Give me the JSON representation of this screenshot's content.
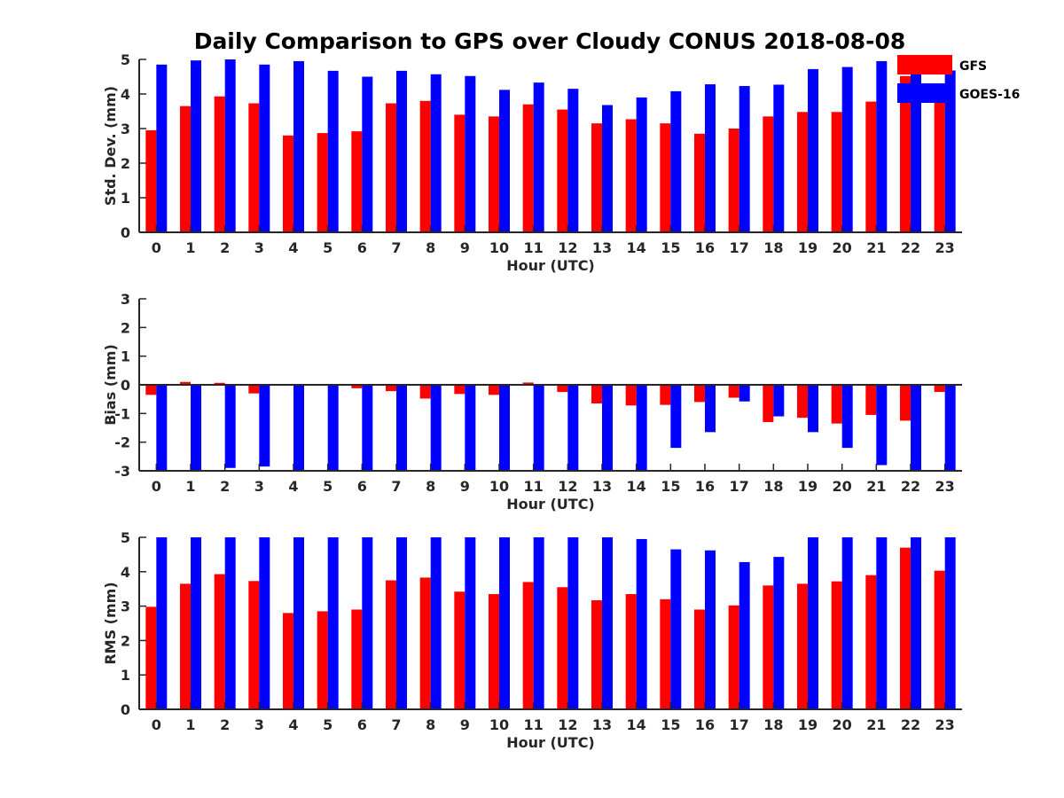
{
  "chart_data": {
    "type": "bar",
    "title": "Daily Comparison to GPS over Cloudy CONUS 2018-08-08",
    "legend": {
      "placement": "top-right",
      "entries": [
        {
          "name": "GFS",
          "color": "#ff0000"
        },
        {
          "name": "GOES-16",
          "color": "#0000ff"
        }
      ]
    },
    "colors": {
      "GFS": "#ff0000",
      "GOES-16": "#0000ff",
      "axis": "#262626"
    },
    "grid": false,
    "panels": [
      {
        "id": "stddev",
        "ylabel": "Std. Dev. (mm)",
        "xlabel": "Hour (UTC)",
        "ylim": [
          0,
          5
        ],
        "yticks": [
          0,
          1,
          2,
          3,
          4,
          5
        ],
        "zero_line": false,
        "categories": [
          "0",
          "1",
          "2",
          "3",
          "4",
          "5",
          "6",
          "7",
          "8",
          "9",
          "10",
          "11",
          "12",
          "13",
          "14",
          "15",
          "16",
          "17",
          "18",
          "19",
          "20",
          "21",
          "22",
          "23"
        ],
        "series": [
          {
            "name": "GFS",
            "values": [
              2.95,
              3.65,
              3.93,
              3.73,
              2.8,
              2.87,
              2.92,
              3.73,
              3.8,
              3.4,
              3.35,
              3.7,
              3.55,
              3.15,
              3.27,
              3.15,
              2.85,
              3.0,
              3.35,
              3.48,
              3.48,
              3.78,
              4.52,
              3.78
            ]
          },
          {
            "name": "GOES-16",
            "values": [
              4.85,
              4.97,
              5.0,
              4.85,
              4.95,
              4.67,
              4.5,
              4.67,
              4.57,
              4.52,
              4.12,
              4.33,
              4.15,
              3.68,
              3.9,
              4.08,
              4.28,
              4.23,
              4.27,
              4.72,
              4.78,
              4.95,
              5.0,
              4.68
            ]
          }
        ]
      },
      {
        "id": "bias",
        "ylabel": "Bias (mm)",
        "xlabel": "Hour (UTC)",
        "ylim": [
          -3,
          3
        ],
        "yticks": [
          -3,
          -2,
          -1,
          0,
          1,
          2,
          3
        ],
        "zero_line": true,
        "categories": [
          "0",
          "1",
          "2",
          "3",
          "4",
          "5",
          "6",
          "7",
          "8",
          "9",
          "10",
          "11",
          "12",
          "13",
          "14",
          "15",
          "16",
          "17",
          "18",
          "19",
          "20",
          "21",
          "22",
          "23"
        ],
        "series": [
          {
            "name": "GFS",
            "values": [
              -0.35,
              0.1,
              0.07,
              -0.3,
              0.02,
              0.02,
              -0.12,
              -0.22,
              -0.48,
              -0.32,
              -0.35,
              0.08,
              -0.25,
              -0.65,
              -0.72,
              -0.7,
              -0.6,
              -0.45,
              -1.3,
              -1.15,
              -1.35,
              -1.05,
              -1.25,
              -0.25
            ]
          },
          {
            "name": "GOES-16",
            "values": [
              -3.0,
              -3.0,
              -2.9,
              -2.85,
              -3.0,
              -3.0,
              -3.0,
              -3.0,
              -3.0,
              -3.0,
              -3.0,
              -3.0,
              -3.0,
              -3.0,
              -3.0,
              -2.2,
              -1.65,
              -0.58,
              -1.1,
              -1.65,
              -2.2,
              -2.8,
              -3.0,
              -3.0
            ]
          }
        ]
      },
      {
        "id": "rms",
        "ylabel": "RMS (mm)",
        "xlabel": "Hour (UTC)",
        "ylim": [
          0,
          5
        ],
        "yticks": [
          0,
          1,
          2,
          3,
          4,
          5
        ],
        "zero_line": false,
        "categories": [
          "0",
          "1",
          "2",
          "3",
          "4",
          "5",
          "6",
          "7",
          "8",
          "9",
          "10",
          "11",
          "12",
          "13",
          "14",
          "15",
          "16",
          "17",
          "18",
          "19",
          "20",
          "21",
          "22",
          "23"
        ],
        "series": [
          {
            "name": "GFS",
            "values": [
              2.98,
              3.65,
              3.93,
              3.73,
              2.8,
              2.85,
              2.9,
              3.75,
              3.83,
              3.42,
              3.35,
              3.7,
              3.55,
              3.17,
              3.35,
              3.2,
              2.9,
              3.02,
              3.6,
              3.65,
              3.72,
              3.9,
              4.7,
              4.03
            ]
          },
          {
            "name": "GOES-16",
            "values": [
              5.0,
              5.0,
              5.0,
              5.0,
              5.0,
              5.0,
              5.0,
              5.0,
              5.0,
              5.0,
              5.0,
              5.0,
              5.0,
              5.0,
              4.95,
              4.65,
              4.62,
              4.28,
              4.43,
              5.0,
              5.0,
              5.0,
              5.0,
              5.0
            ]
          }
        ]
      }
    ]
  }
}
